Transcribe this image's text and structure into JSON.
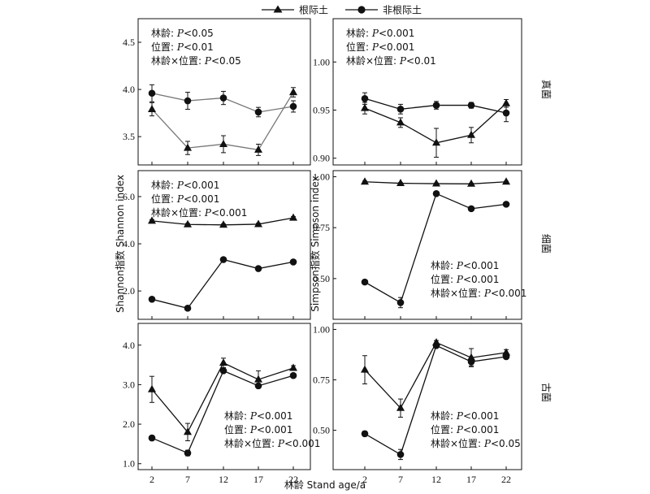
{
  "legend": {
    "series": [
      {
        "name": "根际土",
        "marker": "triangle"
      },
      {
        "name": "非根际土",
        "marker": "circle"
      }
    ]
  },
  "axis_titles": {
    "x": "林龄 Stand age/a",
    "y_left": "Shannon指数 Shannon index",
    "y_right": "Simpson指数 Simpson index"
  },
  "row_labels": [
    "真菌",
    "细菌",
    "古菌"
  ],
  "chart_data": [
    {
      "type": "line",
      "row": "真菌",
      "metric": "Shannon",
      "x": [
        2,
        7,
        12,
        17,
        22
      ],
      "ylim": [
        3.2,
        4.75
      ],
      "yticks": [
        3.5,
        4.0,
        4.5
      ],
      "yticklabels": [
        "3.5",
        "4.0",
        "4.5"
      ],
      "xticklabels": [
        "2",
        "7",
        "12",
        "17",
        "22"
      ],
      "line_color": "#777777",
      "series": [
        {
          "name": "根际土",
          "values": [
            3.79,
            3.38,
            3.42,
            3.36,
            3.97
          ],
          "errors": [
            0.07,
            0.07,
            0.09,
            0.06,
            0.05
          ]
        },
        {
          "name": "非根际土",
          "values": [
            3.96,
            3.88,
            3.91,
            3.76,
            3.82
          ],
          "errors": [
            0.09,
            0.09,
            0.07,
            0.05,
            0.06
          ]
        }
      ],
      "stats": [
        "林龄: P<0.05",
        "位置: P<0.01",
        "林龄×位置: P<0.05"
      ],
      "stats_pos": "top-left"
    },
    {
      "type": "line",
      "row": "真菌",
      "metric": "Simpson",
      "x": [
        2,
        7,
        12,
        17,
        22
      ],
      "ylim": [
        0.893,
        1.045
      ],
      "yticks": [
        0.9,
        0.95,
        1.0
      ],
      "yticklabels": [
        "0.90",
        "0.95",
        "1.00"
      ],
      "xticklabels": [
        "2",
        "7",
        "12",
        "17",
        "22"
      ],
      "line_color": "#111111",
      "series": [
        {
          "name": "根际土",
          "values": [
            0.952,
            0.937,
            0.916,
            0.924,
            0.957
          ],
          "errors": [
            0.006,
            0.005,
            0.015,
            0.008,
            0.004
          ]
        },
        {
          "name": "非根际土",
          "values": [
            0.962,
            0.951,
            0.955,
            0.955,
            0.947
          ],
          "errors": [
            0.006,
            0.005,
            0.004,
            0.003,
            0.009
          ]
        }
      ],
      "stats": [
        "林龄: P<0.001",
        "位置: P<0.001",
        "林龄×位置: P<0.01"
      ],
      "stats_pos": "top-left"
    },
    {
      "type": "line",
      "row": "细菌",
      "metric": "Shannon",
      "x": [
        2,
        7,
        12,
        17,
        22
      ],
      "ylim": [
        0.8,
        7.1
      ],
      "yticks": [
        2.0,
        4.0,
        6.0
      ],
      "yticklabels": [
        "2.0",
        "4.0",
        "6.0"
      ],
      "xticklabels": [
        "2",
        "7",
        "12",
        "17",
        "22"
      ],
      "line_color": "#111111",
      "series": [
        {
          "name": "根际土",
          "values": [
            4.97,
            4.82,
            4.8,
            4.83,
            5.1
          ],
          "errors": [
            0.05,
            0.04,
            0.04,
            0.04,
            0.05
          ]
        },
        {
          "name": "非根际土",
          "values": [
            1.65,
            1.27,
            3.33,
            2.95,
            3.23
          ],
          "errors": [
            0.06,
            0.06,
            0.06,
            0.05,
            0.05
          ]
        }
      ],
      "stats": [
        "林龄: P<0.001",
        "位置: P<0.001",
        "林龄×位置: P<0.001"
      ],
      "stats_pos": "top-left"
    },
    {
      "type": "line",
      "row": "细菌",
      "metric": "Simpson",
      "x": [
        2,
        7,
        12,
        17,
        22
      ],
      "ylim": [
        0.3,
        1.03
      ],
      "yticks": [
        0.5,
        0.75,
        1.0
      ],
      "yticklabels": [
        "0.50",
        "0.75",
        "1.00"
      ],
      "xticklabels": [
        "2",
        "7",
        "12",
        "17",
        "22"
      ],
      "line_color": "#111111",
      "series": [
        {
          "name": "根际土",
          "values": [
            0.975,
            0.968,
            0.966,
            0.965,
            0.975
          ],
          "errors": [
            0.004,
            0.003,
            0.003,
            0.003,
            0.003
          ]
        },
        {
          "name": "非根际土",
          "values": [
            0.483,
            0.382,
            0.917,
            0.843,
            0.865
          ],
          "errors": [
            0.01,
            0.025,
            0.006,
            0.005,
            0.005
          ]
        }
      ],
      "stats": [
        "林龄: P<0.001",
        "位置: P<0.001",
        "林龄×位置: P<0.001"
      ],
      "stats_pos": "bottom-right"
    },
    {
      "type": "line",
      "row": "古菌",
      "metric": "Shannon",
      "x": [
        2,
        7,
        12,
        17,
        22
      ],
      "ylim": [
        0.85,
        4.55
      ],
      "yticks": [
        1.0,
        2.0,
        3.0,
        4.0
      ],
      "yticklabels": [
        "1.0",
        "2.0",
        "3.0",
        "4.0"
      ],
      "xticklabels": [
        "2",
        "7",
        "12",
        "17",
        "22"
      ],
      "line_color": "#111111",
      "series": [
        {
          "name": "根际土",
          "values": [
            2.88,
            1.8,
            3.55,
            3.13,
            3.42
          ],
          "errors": [
            0.33,
            0.22,
            0.12,
            0.22,
            0.06
          ]
        },
        {
          "name": "非根际土",
          "values": [
            1.65,
            1.27,
            3.35,
            2.97,
            3.23
          ],
          "errors": [
            0.06,
            0.07,
            0.05,
            0.05,
            0.05
          ]
        }
      ],
      "stats": [
        "林龄: P<0.001",
        "位置: P<0.001",
        "林龄×位置: P<0.001"
      ],
      "stats_pos": "bottom-right"
    },
    {
      "type": "line",
      "row": "古菌",
      "metric": "Simpson",
      "x": [
        2,
        7,
        12,
        17,
        22
      ],
      "ylim": [
        0.305,
        1.03
      ],
      "yticks": [
        0.5,
        0.75,
        1.0
      ],
      "yticklabels": [
        "0.50",
        "0.75",
        "1.00"
      ],
      "xticklabels": [
        "2",
        "7",
        "12",
        "17",
        "22"
      ],
      "line_color": "#111111",
      "series": [
        {
          "name": "根际土",
          "values": [
            0.8,
            0.61,
            0.935,
            0.86,
            0.885
          ],
          "errors": [
            0.07,
            0.045,
            0.01,
            0.045,
            0.015
          ]
        },
        {
          "name": "非根际土",
          "values": [
            0.483,
            0.38,
            0.92,
            0.84,
            0.865
          ],
          "errors": [
            0.012,
            0.025,
            0.007,
            0.02,
            0.01
          ]
        }
      ],
      "stats": [
        "林龄: P<0.001",
        "位置: P<0.001",
        "林龄×位置: P<0.05"
      ],
      "stats_pos": "bottom-right"
    }
  ]
}
